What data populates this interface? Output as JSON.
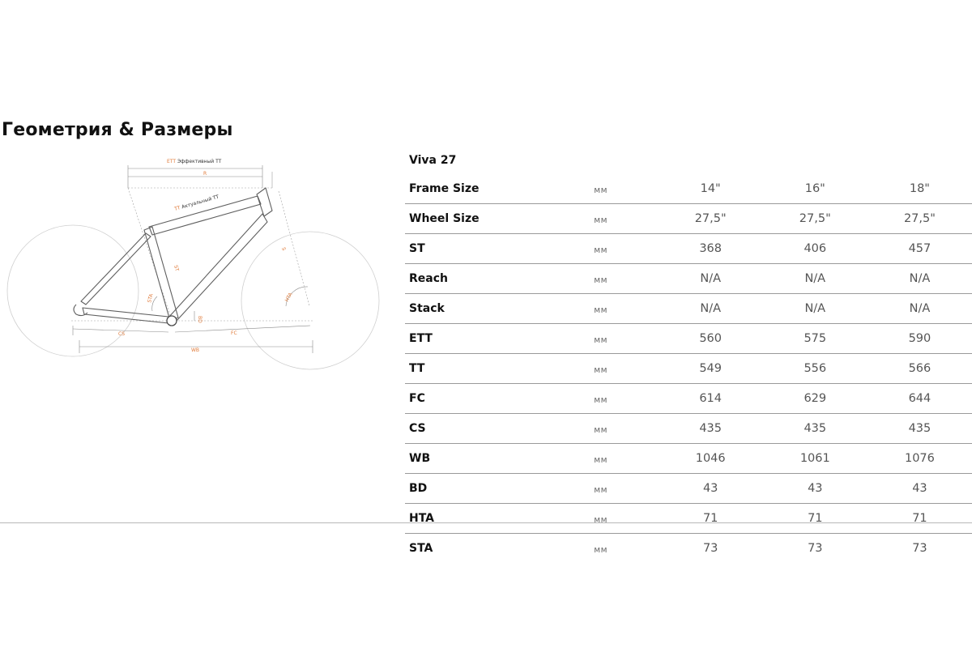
{
  "page": {
    "title": "Геометрия & Размеры"
  },
  "diagram": {
    "labels": {
      "ett_abbr": "ETT",
      "ett_text": "Эффективный TT",
      "r": "R",
      "tt_abbr": "TT",
      "tt_text": "Актуальный TT",
      "st": "ST",
      "sta": "STA",
      "s": "S",
      "hta": "HTA",
      "bd": "BD",
      "cs": "CS",
      "fc": "FC",
      "wb": "WB"
    },
    "colors": {
      "accent": "#e07b3a",
      "line": "#9a9a9a",
      "wheel": "#c8c8c8",
      "frame": "#5a5a5a"
    }
  },
  "table": {
    "model": "Viva 27",
    "header": {
      "param": "Frame Size",
      "unit": "мм",
      "sizes": [
        "14\"",
        "16\"",
        "18\""
      ]
    },
    "rows": [
      {
        "param": "Wheel Size",
        "unit": "мм",
        "values": [
          "27,5\"",
          "27,5\"",
          "27,5\""
        ]
      },
      {
        "param": "ST",
        "unit": "мм",
        "values": [
          "368",
          "406",
          "457"
        ]
      },
      {
        "param": "Reach",
        "unit": "мм",
        "values": [
          "N/A",
          "N/A",
          "N/A"
        ]
      },
      {
        "param": "Stack",
        "unit": "мм",
        "values": [
          "N/A",
          "N/A",
          "N/A"
        ]
      },
      {
        "param": "ETT",
        "unit": "мм",
        "values": [
          "560",
          "575",
          "590"
        ]
      },
      {
        "param": "TT",
        "unit": "мм",
        "values": [
          "549",
          "556",
          "566"
        ]
      },
      {
        "param": "FC",
        "unit": "мм",
        "values": [
          "614",
          "629",
          "644"
        ]
      },
      {
        "param": "CS",
        "unit": "мм",
        "values": [
          "435",
          "435",
          "435"
        ]
      },
      {
        "param": "WB",
        "unit": "мм",
        "values": [
          "1046",
          "1061",
          "1076"
        ]
      },
      {
        "param": "BD",
        "unit": "мм",
        "values": [
          "43",
          "43",
          "43"
        ]
      },
      {
        "param": "HTA",
        "unit": "мм",
        "values": [
          "71",
          "71",
          "71"
        ]
      },
      {
        "param": "STA",
        "unit": "мм",
        "values": [
          "73",
          "73",
          "73"
        ]
      }
    ]
  }
}
